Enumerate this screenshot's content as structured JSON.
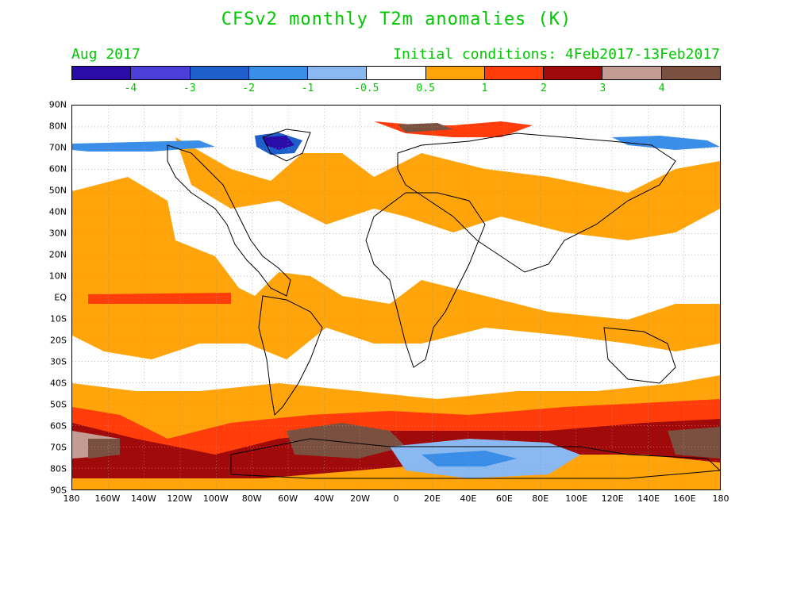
{
  "title": "CFSv2 monthly T2m anomalies (K)",
  "month": "Aug 2017",
  "initial_conditions": "Initial conditions: 4Feb2017-13Feb2017",
  "colorbar": {
    "colors": [
      "#2a0ca8",
      "#4a3fd6",
      "#1f5fcc",
      "#3a8ee8",
      "#8ab8f0",
      "#ffffff",
      "#ffa40a",
      "#ff3c0a",
      "#a00a0a",
      "#c49c94",
      "#7a5040"
    ],
    "labels": [
      "-4",
      "-3",
      "-2",
      "-1",
      "-0.5",
      "0.5",
      "1",
      "2",
      "3",
      "4"
    ]
  },
  "lat_labels": [
    "90N",
    "80N",
    "70N",
    "60N",
    "50N",
    "40N",
    "30N",
    "20N",
    "10N",
    "EQ",
    "10S",
    "20S",
    "30S",
    "40S",
    "50S",
    "60S",
    "70S",
    "80S",
    "90S"
  ],
  "lon_labels": [
    "180",
    "160W",
    "140W",
    "120W",
    "100W",
    "80W",
    "60W",
    "40W",
    "20W",
    "0",
    "20E",
    "40E",
    "60E",
    "80E",
    "100E",
    "120E",
    "140E",
    "160E",
    "180"
  ]
}
